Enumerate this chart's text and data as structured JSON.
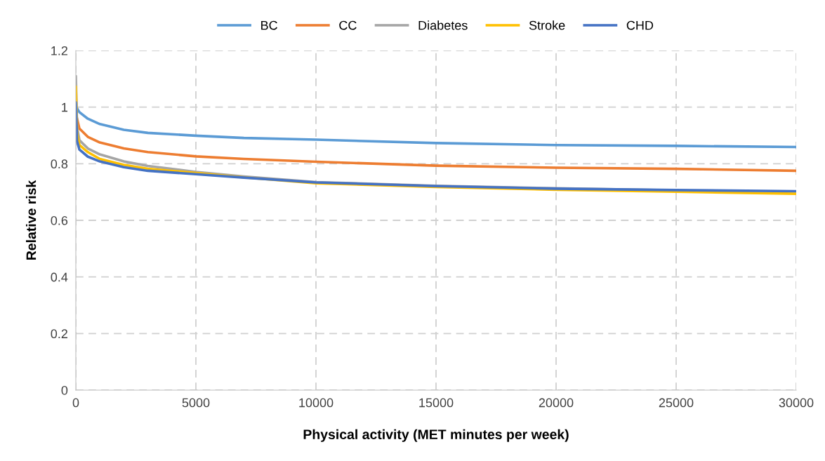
{
  "chart_data": {
    "type": "line",
    "xlabel": "Physical activity (MET minutes per week)",
    "ylabel": "Relative risk",
    "xlim": [
      0,
      30000
    ],
    "xticks": [
      0,
      5000,
      10000,
      15000,
      20000,
      25000,
      30000
    ],
    "ylim": [
      0,
      1.2
    ],
    "yticks": [
      0,
      0.2,
      0.4,
      0.6,
      0.8,
      1,
      1.2
    ],
    "grid": true,
    "legend": "top",
    "line_style": "solid",
    "marker": "none",
    "series": [
      {
        "name": "BC",
        "color": "#5b9bd5",
        "x": [
          20,
          150,
          500,
          1000,
          2000,
          3000,
          5000,
          7000,
          10000,
          15000,
          20000,
          25000,
          30000
        ],
        "values": [
          1.0,
          0.982,
          0.959,
          0.94,
          0.92,
          0.909,
          0.899,
          0.891,
          0.885,
          0.873,
          0.866,
          0.863,
          0.859
        ]
      },
      {
        "name": "CC",
        "color": "#ed7d31",
        "x": [
          20,
          150,
          500,
          1000,
          2000,
          3000,
          5000,
          7000,
          10000,
          15000,
          20000,
          25000,
          30000
        ],
        "values": [
          0.97,
          0.924,
          0.895,
          0.875,
          0.854,
          0.841,
          0.826,
          0.817,
          0.807,
          0.793,
          0.786,
          0.782,
          0.775
        ]
      },
      {
        "name": "Diabetes",
        "color": "#a5a5a5",
        "x": [
          0,
          50,
          150,
          500,
          1000,
          2000,
          3000,
          5000,
          7000,
          10000,
          15000,
          20000,
          25000
        ],
        "values": [
          1.11,
          0.93,
          0.883,
          0.854,
          0.833,
          0.808,
          0.792,
          0.771,
          0.755,
          0.735,
          0.722,
          0.713,
          0.706
        ]
      },
      {
        "name": "Stroke",
        "color": "#ffc000",
        "x": [
          0,
          50,
          150,
          500,
          1000,
          2000,
          3000,
          5000,
          7000,
          10000,
          15000,
          20000,
          25000,
          30000
        ],
        "values": [
          1.073,
          0.91,
          0.866,
          0.841,
          0.817,
          0.796,
          0.782,
          0.767,
          0.752,
          0.731,
          0.718,
          0.708,
          0.701,
          0.694
        ]
      },
      {
        "name": "CHD",
        "color": "#4472c4",
        "x": [
          0,
          50,
          150,
          500,
          1000,
          2000,
          3000,
          5000,
          7000,
          10000,
          15000,
          20000,
          25000,
          30000
        ],
        "values": [
          1.017,
          0.88,
          0.85,
          0.825,
          0.808,
          0.788,
          0.775,
          0.763,
          0.751,
          0.734,
          0.721,
          0.712,
          0.707,
          0.703
        ]
      }
    ]
  }
}
